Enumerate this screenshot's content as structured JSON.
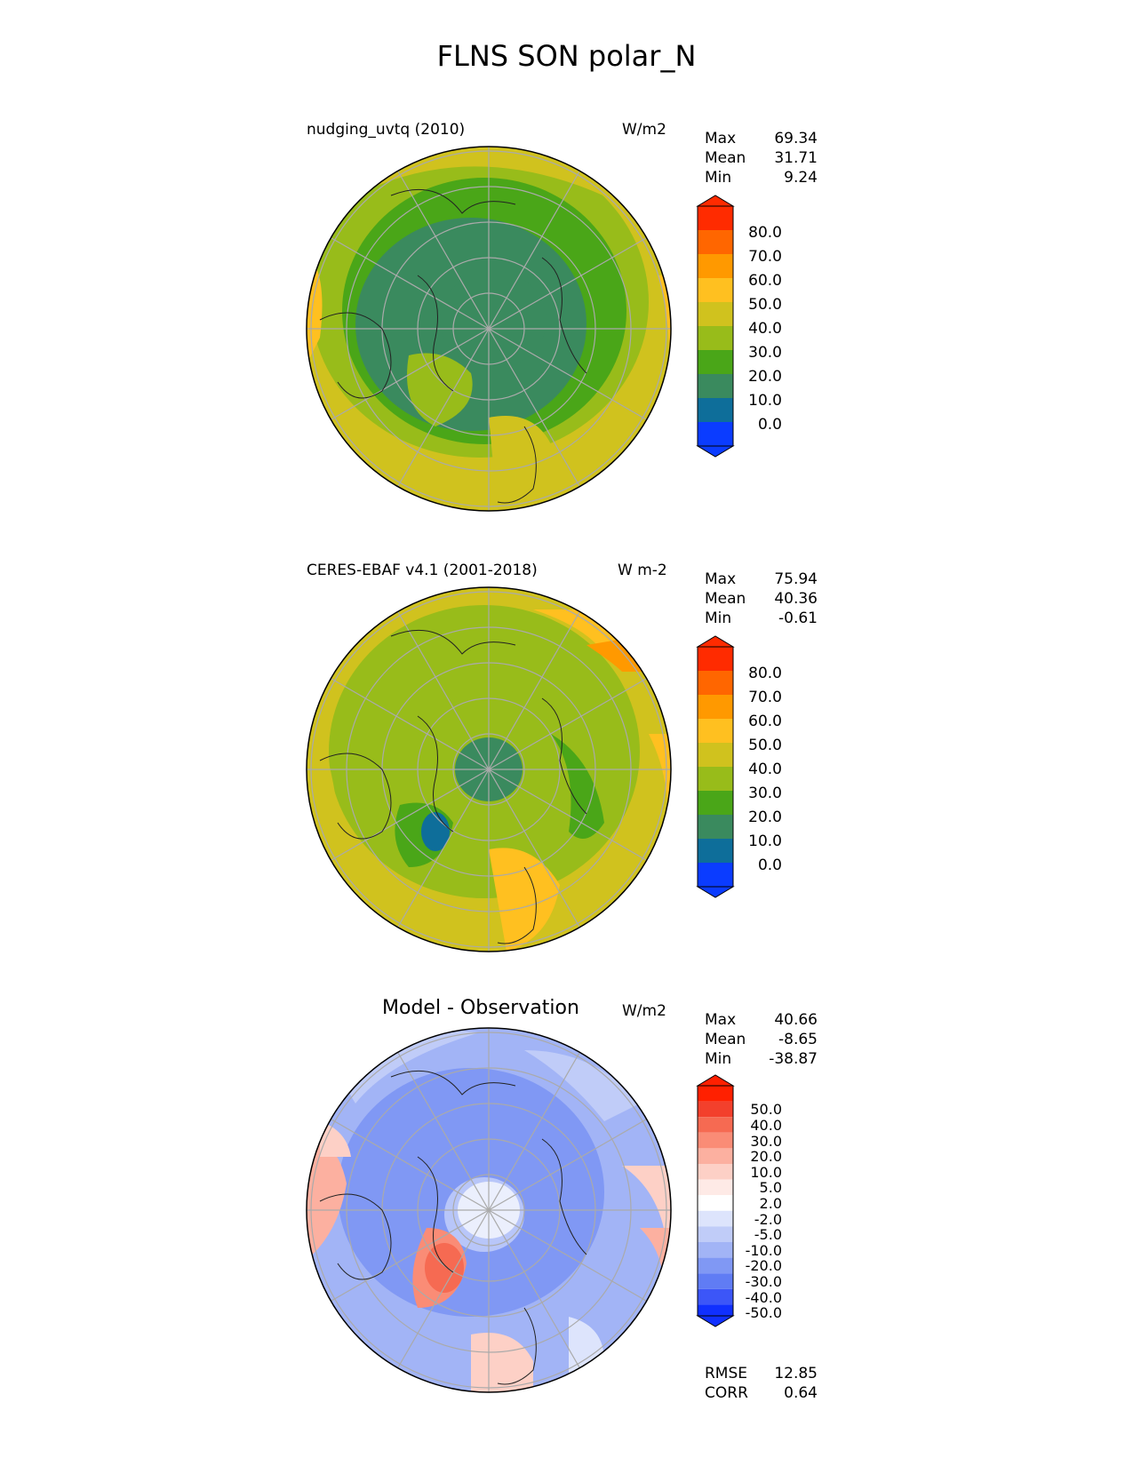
{
  "title": "FLNS SON polar_N",
  "panels": [
    {
      "id": "test",
      "left_title": "nudging_uvtq (2010)",
      "units": "W/m2",
      "stats": [
        {
          "label": "Max",
          "value": "69.34"
        },
        {
          "label": "Mean",
          "value": "31.71"
        },
        {
          "label": "Min",
          "value": "9.24"
        }
      ],
      "colorbar": {
        "labels": [
          "80.0",
          "70.0",
          "60.0",
          "50.0",
          "40.0",
          "30.0",
          "20.0",
          "10.0",
          "0.0"
        ],
        "colors": [
          "#ff2b00",
          "#ff6600",
          "#ff9900",
          "#ffc020",
          "#d0c21e",
          "#98bc1a",
          "#4aa618",
          "#3a8a5e",
          "#0e6e9a",
          "#0b3cff"
        ]
      }
    },
    {
      "id": "reference",
      "left_title": "CERES-EBAF v4.1 (2001-2018)",
      "units": "W m-2",
      "stats": [
        {
          "label": "Max",
          "value": "75.94"
        },
        {
          "label": "Mean",
          "value": "40.36"
        },
        {
          "label": "Min",
          "value": "-0.61"
        }
      ],
      "colorbar": {
        "labels": [
          "80.0",
          "70.0",
          "60.0",
          "50.0",
          "40.0",
          "30.0",
          "20.0",
          "10.0",
          "0.0"
        ],
        "colors": [
          "#ff2b00",
          "#ff6600",
          "#ff9900",
          "#ffc020",
          "#d0c21e",
          "#98bc1a",
          "#4aa618",
          "#3a8a5e",
          "#0e6e9a",
          "#0b3cff"
        ]
      }
    },
    {
      "id": "difference",
      "center_title": "Model - Observation",
      "units": "W/m2",
      "stats": [
        {
          "label": "Max",
          "value": "40.66"
        },
        {
          "label": "Mean",
          "value": "-8.65"
        },
        {
          "label": "Min",
          "value": "-38.87"
        }
      ],
      "colorbar": {
        "labels": [
          "50.0",
          "40.0",
          "30.0",
          "20.0",
          "10.0",
          "5.0",
          "2.0",
          "-2.0",
          "-5.0",
          "-10.0",
          "-20.0",
          "-30.0",
          "-40.0",
          "-50.0"
        ],
        "colors": [
          "#ff2000",
          "#f3402c",
          "#f66a52",
          "#fa8c76",
          "#fcb0a0",
          "#fdd0c6",
          "#feeae6",
          "#ffffff",
          "#dde4fc",
          "#c0ccf8",
          "#a2b4f6",
          "#8098f4",
          "#607cf4",
          "#3c56f8",
          "#1030ff"
        ]
      },
      "metrics": [
        {
          "label": "RMSE",
          "value": "12.85"
        },
        {
          "label": "CORR",
          "value": "0.64"
        }
      ]
    }
  ]
}
